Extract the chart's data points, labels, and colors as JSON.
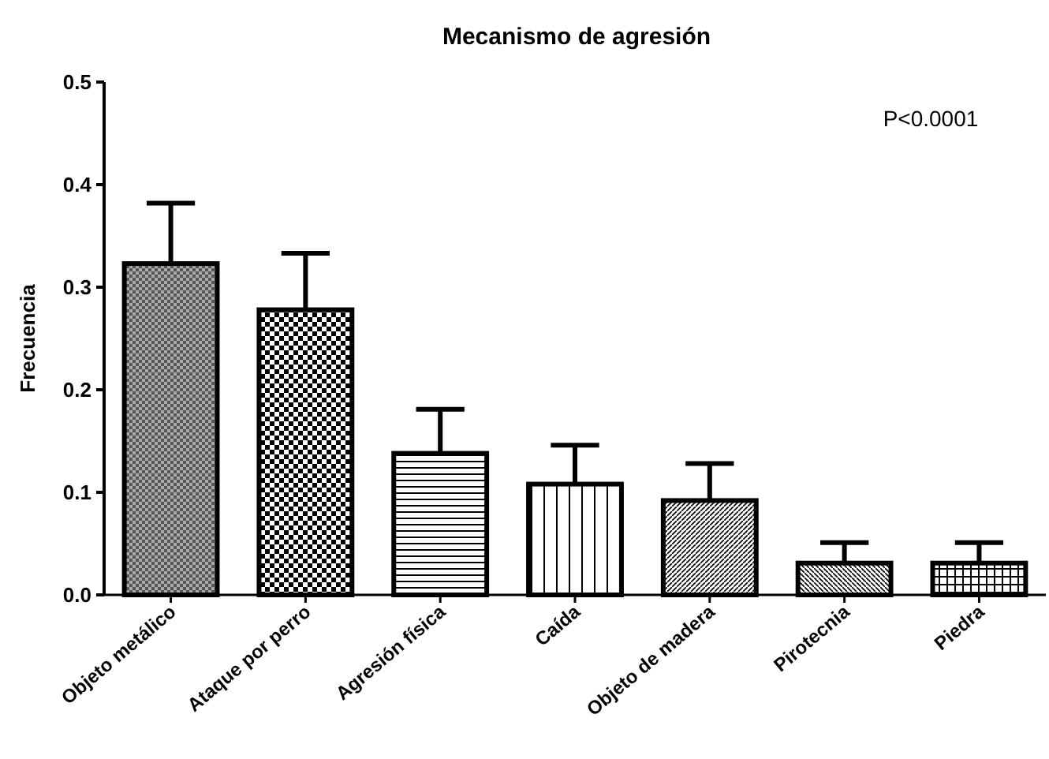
{
  "chart_data": {
    "type": "bar",
    "title": "Mecanismo de agresión",
    "ylabel": "Frecuencia",
    "categories": [
      "Objeto metálico",
      "Ataque por perro",
      "Agresión física",
      "Caída",
      "Objeto de madera",
      "Pirotecnia",
      "Piedra"
    ],
    "values": [
      0.323,
      0.278,
      0.138,
      0.108,
      0.092,
      0.031,
      0.031
    ],
    "errors": [
      [
        0.323,
        0.382
      ],
      [
        0.278,
        0.333
      ],
      [
        0.138,
        0.181
      ],
      [
        0.108,
        0.146
      ],
      [
        0.092,
        0.128
      ],
      [
        0.031,
        0.051
      ],
      [
        0.031,
        0.051
      ]
    ],
    "color": "#000000",
    "ylim": [
      0,
      0.5
    ],
    "yticks": [
      {
        "value": 0,
        "label": "0.0"
      },
      {
        "value": 0.1,
        "label": "0.1"
      },
      {
        "value": 0.2,
        "label": "0.2"
      },
      {
        "value": 0.3,
        "label": "0.3"
      },
      {
        "value": 0.4,
        "label": "0.4"
      },
      {
        "value": 0.5,
        "label": "0.5"
      }
    ],
    "annotations": [
      "P<0.0001"
    ],
    "grid": false
  }
}
